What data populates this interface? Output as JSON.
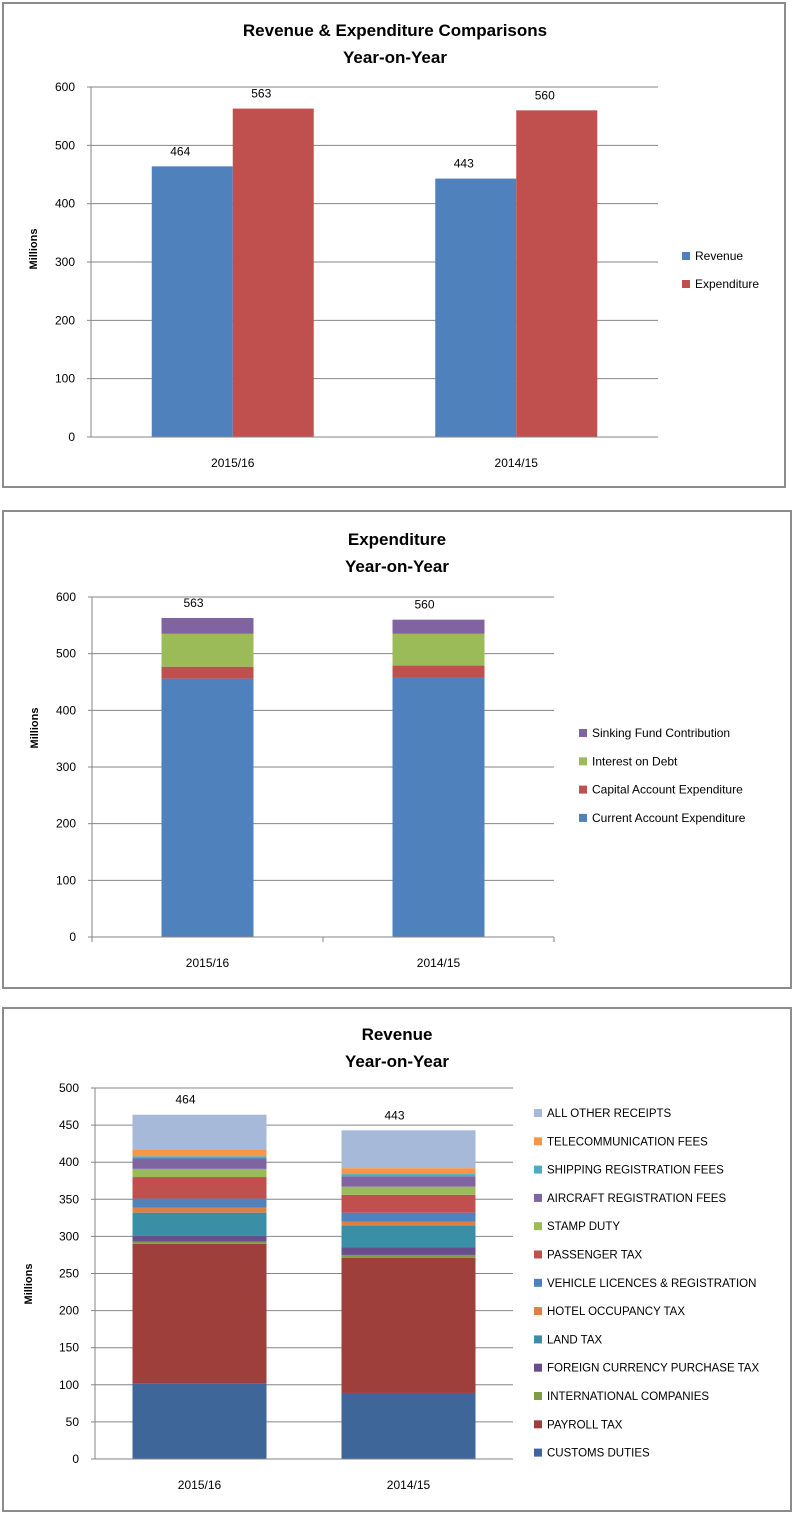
{
  "chart_data": [
    {
      "type": "bar",
      "title": "Revenue & Expenditure  Comparisons",
      "subtitle": "Year-on-Year",
      "xlabel": "",
      "ylabel": "Millions",
      "ylim": [
        0,
        600
      ],
      "yticks": [
        0,
        100,
        200,
        300,
        400,
        500,
        600
      ],
      "grid": true,
      "legend": "right",
      "categories": [
        "2015/16",
        "2014/15"
      ],
      "series": [
        {
          "name": "Revenue",
          "color": "#4F81BD",
          "values": [
            464,
            443
          ]
        },
        {
          "name": "Expenditure",
          "color": "#C0504D",
          "values": [
            563,
            560
          ]
        }
      ],
      "data_labels": true
    },
    {
      "type": "bar",
      "stacked": true,
      "title": "Expenditure",
      "subtitle": "Year-on-Year",
      "xlabel": "",
      "ylabel": "Millions",
      "ylim": [
        0,
        600
      ],
      "yticks": [
        0,
        100,
        200,
        300,
        400,
        500,
        600
      ],
      "grid": true,
      "legend": "right",
      "categories": [
        "2015/16",
        "2014/15"
      ],
      "totals": [
        563,
        560
      ],
      "series": [
        {
          "name": "Current Account Expenditure",
          "color": "#4F81BD",
          "values": [
            456,
            458
          ]
        },
        {
          "name": "Capital Account Expenditure",
          "color": "#C0504D",
          "values": [
            21,
            21
          ]
        },
        {
          "name": "Interest on Debt",
          "color": "#9BBB59",
          "values": [
            58,
            56
          ]
        },
        {
          "name": "Sinking Fund Contribution",
          "color": "#8064A2",
          "values": [
            28,
            25
          ]
        }
      ]
    },
    {
      "type": "bar",
      "stacked": true,
      "title": "Revenue",
      "subtitle": "Year-on-Year",
      "xlabel": "",
      "ylabel": "Millions",
      "ylim": [
        0,
        500
      ],
      "yticks": [
        0,
        50,
        100,
        150,
        200,
        250,
        300,
        350,
        400,
        450,
        500
      ],
      "grid": true,
      "legend": "right",
      "categories": [
        "2015/16",
        "2014/15"
      ],
      "totals": [
        464,
        443
      ],
      "series": [
        {
          "name": "CUSTOMS DUTIES",
          "color": "#3E6699",
          "values": [
            102,
            89
          ]
        },
        {
          "name": "PAYROLL TAX",
          "color": "#9E3F3C",
          "values": [
            188,
            182
          ]
        },
        {
          "name": "INTERNATIONAL  COMPANIES",
          "color": "#7E9D45",
          "values": [
            3,
            4
          ]
        },
        {
          "name": "FOREIGN CURRENCY  PURCHASE TAX",
          "color": "#6A4D8C",
          "values": [
            8,
            10
          ]
        },
        {
          "name": "LAND TAX",
          "color": "#3A8FA6",
          "values": [
            31,
            30
          ]
        },
        {
          "name": "HOTEL OCCUPANCY TAX",
          "color": "#DC8140",
          "values": [
            7,
            5
          ]
        },
        {
          "name": "VEHICLE LICENCES  & REGISTRATION",
          "color": "#4F81BD",
          "values": [
            12,
            12
          ]
        },
        {
          "name": "PASSENGER TAX",
          "color": "#C0504D",
          "values": [
            29,
            24
          ]
        },
        {
          "name": "STAMP DUTY",
          "color": "#9BBB59",
          "values": [
            11,
            11
          ]
        },
        {
          "name": "AIRCRAFT REGISTRATION  FEES",
          "color": "#8064A2",
          "values": [
            14,
            14
          ]
        },
        {
          "name": "SHIPPING REGISTRATION  FEES",
          "color": "#4BACC6",
          "values": [
            3,
            3
          ]
        },
        {
          "name": "TELECOMMUNICATION  FEES",
          "color": "#F79646",
          "values": [
            9,
            8
          ]
        },
        {
          "name": "ALL OTHER RECEIPTS",
          "color": "#A7B9D9",
          "values": [
            47,
            51
          ]
        }
      ]
    }
  ]
}
